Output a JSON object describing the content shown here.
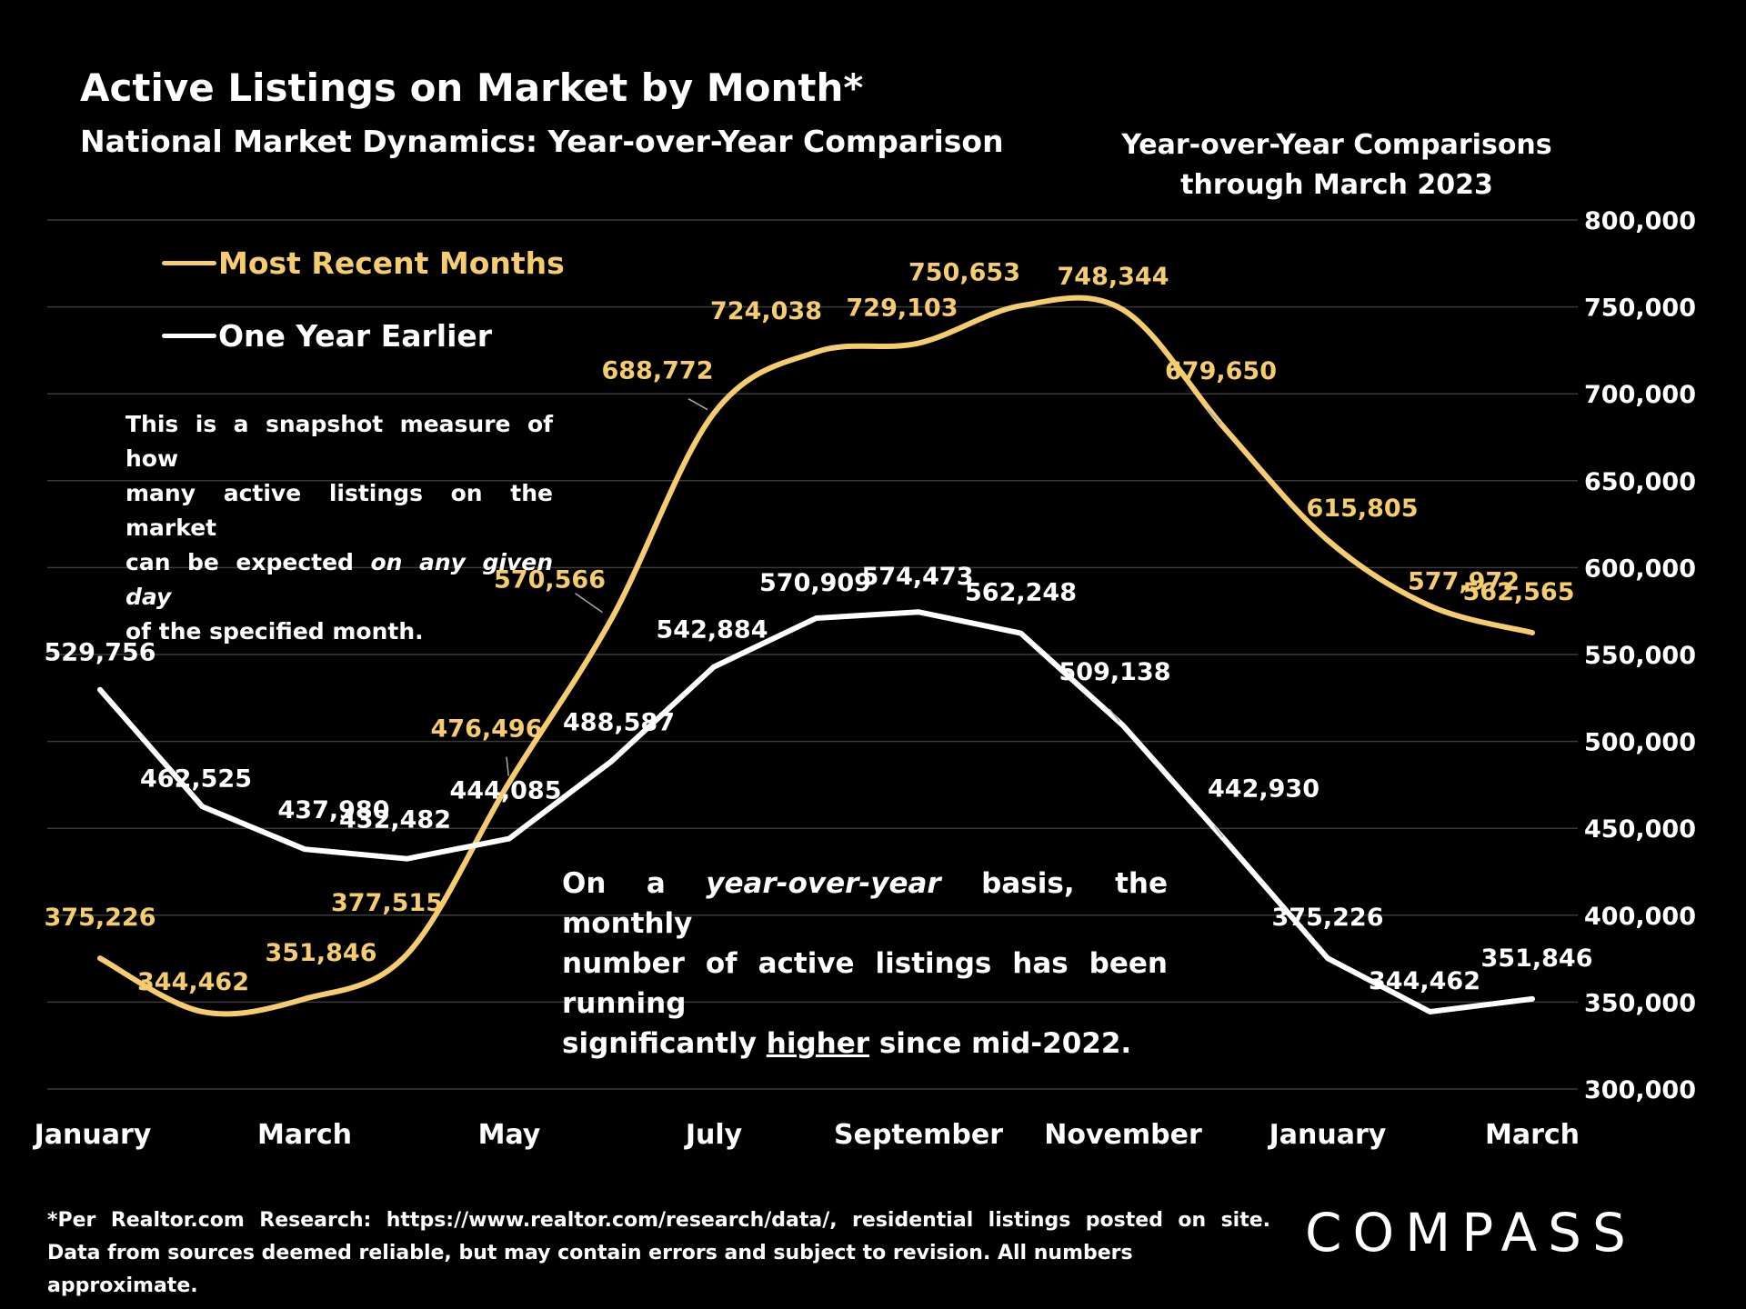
{
  "header": {
    "title": "Active Listings on Market by Month*",
    "subtitle": "National Market Dynamics: Year-over-Year Comparison",
    "yoy_note_line1": "Year-over-Year Comparisons",
    "yoy_note_line2": "through March 2023"
  },
  "legend": {
    "recent_label": "Most Recent Months",
    "earlier_label": "One Year Earlier"
  },
  "annotations": {
    "snapshot_line1": "This is a snapshot measure of how",
    "snapshot_line2": "many active listings on the market",
    "snapshot_line3_pre": "can be expected ",
    "snapshot_line3_em": "on any given day",
    "snapshot_line4": "of the specified month.",
    "callout_line1_pre": "On a ",
    "callout_line1_em": "year-over-year",
    "callout_line1_post": " basis, the monthly",
    "callout_line2": "number of active listings has been running",
    "callout_line3_pre": "significantly ",
    "callout_line3_u": "higher",
    "callout_line3_post": " since mid-2022."
  },
  "footnote": {
    "line1": "*Per Realtor.com Research:  https://www.realtor.com/research/data/, residential listings posted on site.",
    "line2": "Data from sources deemed reliable, but may contain errors and subject to revision. All numbers approximate."
  },
  "brand": {
    "name": "COMPASS"
  },
  "colors": {
    "recent": "#f5cd6e",
    "earlier": "#ffffff",
    "grid": "#3a3a3a",
    "background": "#000000"
  },
  "chart_data": {
    "type": "line",
    "title": "Active Listings on Market by Month*",
    "categories": [
      "January",
      "February",
      "March",
      "April",
      "May",
      "June",
      "July",
      "August",
      "September",
      "October",
      "November",
      "December",
      "January",
      "February",
      "March"
    ],
    "tick_labels": [
      "January",
      "",
      "March",
      "",
      "May",
      "",
      "July",
      "",
      "September",
      "",
      "November",
      "",
      "January",
      "",
      "March"
    ],
    "ylim": [
      300000,
      800000
    ],
    "yticks": [
      300000,
      350000,
      400000,
      450000,
      500000,
      550000,
      600000,
      650000,
      700000,
      750000,
      800000
    ],
    "ytick_labels": [
      "300,000",
      "350,000",
      "400,000",
      "450,000",
      "500,000",
      "550,000",
      "600,000",
      "650,000",
      "700,000",
      "750,000",
      "800,000"
    ],
    "grid": true,
    "legend_position": "top-left",
    "series": [
      {
        "name": "Most Recent Months",
        "color": "#f5cd6e",
        "smooth": true,
        "values": [
          375226,
          344462,
          351846,
          377515,
          476496,
          570566,
          688772,
          724038,
          729103,
          750653,
          748344,
          679650,
          615805,
          577972,
          562565
        ],
        "labels": [
          "375,226",
          "344,462",
          "351,846",
          "377,515",
          "476,496",
          "570,566",
          "688,772",
          "724,038",
          "729,103",
          "750,653",
          "748,344",
          "679,650",
          "615,805",
          "577,972",
          "562,565"
        ]
      },
      {
        "name": "One Year Earlier",
        "color": "#ffffff",
        "smooth": false,
        "values": [
          529756,
          462525,
          437980,
          432482,
          444085,
          488587,
          542884,
          570909,
          574473,
          562248,
          509138,
          442930,
          375226,
          344462,
          351846
        ],
        "labels": [
          "529,756",
          "462,525",
          "437,980",
          "432,482",
          "444,085",
          "488,587",
          "542,884",
          "570,909",
          "574,473",
          "562,248",
          "509,138",
          "442,930",
          "375,226",
          "344,462",
          "351,846"
        ]
      }
    ]
  }
}
